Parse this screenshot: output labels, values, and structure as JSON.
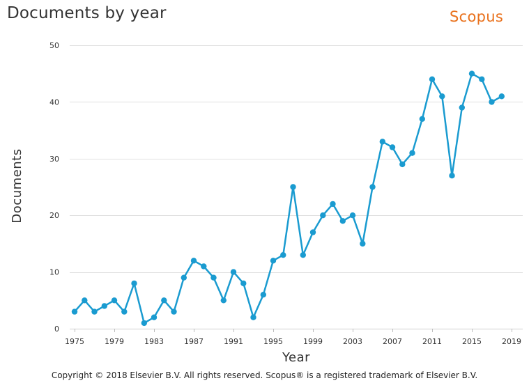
{
  "header": {
    "title": "Documents by year",
    "brand": "Scopus"
  },
  "footer": {
    "copyright": "Copyright © 2018 Elsevier B.V. All rights reserved. Scopus® is a registered trademark of Elsevier B.V."
  },
  "colors": {
    "series": "#1a9bd0",
    "brand": "#e9711c",
    "grid": "#e0e0e0"
  },
  "chart_data": {
    "type": "line",
    "title": "Documents by year",
    "xlabel": "Year",
    "ylabel": "Documents",
    "xlim": [
      1975,
      2019
    ],
    "ylim": [
      0,
      50
    ],
    "y_ticks": [
      0,
      10,
      20,
      30,
      40,
      50
    ],
    "x_ticks": [
      1975,
      1979,
      1983,
      1987,
      1991,
      1995,
      1999,
      2003,
      2007,
      2011,
      2015,
      2019
    ],
    "grid": true,
    "legend": "none",
    "series": [
      {
        "x": [
          1975,
          1976,
          1977,
          1978,
          1979,
          1980,
          1981,
          1982,
          1983,
          1984,
          1985,
          1986,
          1987,
          1988,
          1989,
          1990,
          1991,
          1992,
          1993,
          1994,
          1995,
          1996,
          1997,
          1998,
          1999,
          2000,
          2001,
          2002,
          2003,
          2004,
          2005,
          2006,
          2007,
          2008,
          2009,
          2010,
          2011,
          2012,
          2013,
          2014,
          2015,
          2016,
          2017,
          2018
        ],
        "values": [
          3,
          5,
          3,
          4,
          5,
          3,
          8,
          1,
          2,
          5,
          3,
          9,
          12,
          11,
          9,
          5,
          10,
          8,
          2,
          6,
          12,
          13,
          25,
          13,
          17,
          20,
          22,
          19,
          20,
          15,
          25,
          33,
          32,
          29,
          31,
          37,
          44,
          41,
          27,
          39,
          45,
          44,
          40,
          41
        ]
      }
    ]
  }
}
